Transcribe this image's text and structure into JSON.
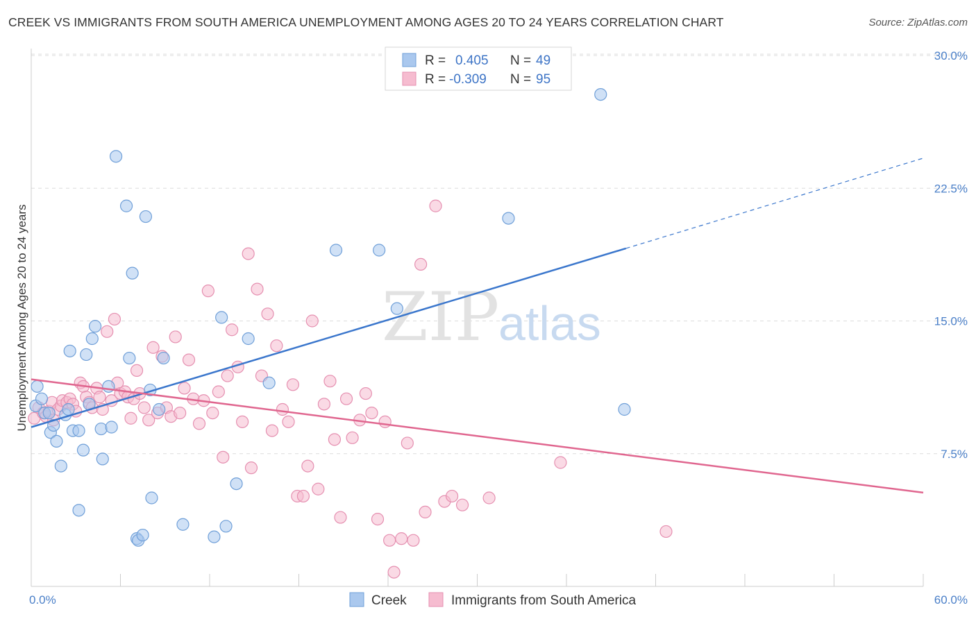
{
  "title": "CREEK VS IMMIGRANTS FROM SOUTH AMERICA UNEMPLOYMENT AMONG AGES 20 TO 24 YEARS CORRELATION CHART",
  "source": "Source: ZipAtlas.com",
  "watermark": {
    "part1": "ZIP",
    "part2": "atlas"
  },
  "colors": {
    "creek_fill": "#aac8ee",
    "creek_stroke": "#6f9fd8",
    "creek_line": "#3a76cc",
    "sa_fill": "#f6bcd0",
    "sa_stroke": "#e58fb0",
    "sa_line": "#e0668f",
    "tick_text": "#4a7fc8",
    "grid": "#dcdcdc"
  },
  "stats": {
    "creek": {
      "r_label": "R =",
      "r_value": "0.405",
      "n_label": "N =",
      "n_value": "49"
    },
    "sa": {
      "r_label": "R =",
      "r_value": "-0.309",
      "n_label": "N =",
      "n_value": "95"
    }
  },
  "chart_data": {
    "type": "scatter",
    "title": "CREEK VS IMMIGRANTS FROM SOUTH AMERICA UNEMPLOYMENT AMONG AGES 20 TO 24 YEARS CORRELATION CHART",
    "xlabel": "",
    "ylabel": "Unemployment Among Ages 20 to 24 years",
    "xlim": [
      0,
      60
    ],
    "ylim": [
      0,
      30
    ],
    "x_tick_labels": [
      "0.0%",
      "60.0%"
    ],
    "y_ticks": [
      7.5,
      15.0,
      22.5,
      30.0
    ],
    "y_tick_labels": [
      "7.5%",
      "15.0%",
      "22.5%",
      "30.0%"
    ],
    "grid": "horizontal dashed",
    "legend": "top-center and bottom-center",
    "series": [
      {
        "name": "Creek",
        "points": [
          [
            0.3,
            10.2
          ],
          [
            0.4,
            11.3
          ],
          [
            0.7,
            10.6
          ],
          [
            0.9,
            9.8
          ],
          [
            1.2,
            9.8
          ],
          [
            1.3,
            8.7
          ],
          [
            1.5,
            9.1
          ],
          [
            1.7,
            8.2
          ],
          [
            2.0,
            6.8
          ],
          [
            2.3,
            9.7
          ],
          [
            2.5,
            10.0
          ],
          [
            2.6,
            13.3
          ],
          [
            2.8,
            8.8
          ],
          [
            3.2,
            8.8
          ],
          [
            3.2,
            4.3
          ],
          [
            3.5,
            7.7
          ],
          [
            3.7,
            13.1
          ],
          [
            3.9,
            10.3
          ],
          [
            4.1,
            14.0
          ],
          [
            4.3,
            14.7
          ],
          [
            4.7,
            8.9
          ],
          [
            4.8,
            7.2
          ],
          [
            5.2,
            11.3
          ],
          [
            5.4,
            9.0
          ],
          [
            5.7,
            24.3
          ],
          [
            6.4,
            21.5
          ],
          [
            6.6,
            12.9
          ],
          [
            6.8,
            17.7
          ],
          [
            7.1,
            2.7
          ],
          [
            7.2,
            2.6
          ],
          [
            7.5,
            2.9
          ],
          [
            7.7,
            20.9
          ],
          [
            8.0,
            11.1
          ],
          [
            8.1,
            5.0
          ],
          [
            8.6,
            10.0
          ],
          [
            8.9,
            12.9
          ],
          [
            10.2,
            3.5
          ],
          [
            12.3,
            2.8
          ],
          [
            12.8,
            15.2
          ],
          [
            13.1,
            3.4
          ],
          [
            13.8,
            5.8
          ],
          [
            14.6,
            14.0
          ],
          [
            16.0,
            11.5
          ],
          [
            20.5,
            19.0
          ],
          [
            23.4,
            19.0
          ],
          [
            24.6,
            15.7
          ],
          [
            32.1,
            20.8
          ],
          [
            38.3,
            27.8
          ],
          [
            39.9,
            10.0
          ]
        ]
      },
      {
        "name": "Immigrants from South America",
        "points": [
          [
            0.2,
            9.5
          ],
          [
            0.5,
            10.1
          ],
          [
            0.8,
            9.8
          ],
          [
            1.0,
            9.6
          ],
          [
            1.2,
            9.9
          ],
          [
            1.4,
            10.4
          ],
          [
            1.5,
            9.4
          ],
          [
            1.8,
            10.0
          ],
          [
            2.0,
            10.2
          ],
          [
            2.1,
            10.5
          ],
          [
            2.4,
            10.4
          ],
          [
            2.6,
            10.6
          ],
          [
            2.8,
            10.3
          ],
          [
            3.0,
            9.9
          ],
          [
            3.3,
            11.5
          ],
          [
            3.5,
            11.3
          ],
          [
            3.7,
            10.7
          ],
          [
            3.9,
            10.4
          ],
          [
            4.1,
            10.1
          ],
          [
            4.4,
            11.2
          ],
          [
            4.6,
            10.7
          ],
          [
            4.8,
            10.0
          ],
          [
            5.1,
            14.4
          ],
          [
            5.4,
            10.5
          ],
          [
            5.6,
            15.1
          ],
          [
            5.8,
            11.5
          ],
          [
            6.0,
            10.9
          ],
          [
            6.3,
            11.0
          ],
          [
            6.5,
            10.7
          ],
          [
            6.7,
            9.5
          ],
          [
            6.9,
            10.6
          ],
          [
            7.1,
            12.2
          ],
          [
            7.3,
            10.9
          ],
          [
            7.6,
            10.1
          ],
          [
            7.9,
            9.4
          ],
          [
            8.2,
            13.5
          ],
          [
            8.5,
            9.8
          ],
          [
            8.8,
            13.0
          ],
          [
            9.1,
            10.1
          ],
          [
            9.4,
            9.6
          ],
          [
            9.7,
            14.1
          ],
          [
            10.0,
            9.8
          ],
          [
            10.3,
            11.2
          ],
          [
            10.6,
            12.8
          ],
          [
            10.9,
            10.6
          ],
          [
            11.3,
            9.2
          ],
          [
            11.6,
            10.5
          ],
          [
            11.9,
            16.7
          ],
          [
            12.2,
            9.8
          ],
          [
            12.6,
            11.0
          ],
          [
            12.9,
            7.3
          ],
          [
            13.2,
            11.9
          ],
          [
            13.5,
            14.5
          ],
          [
            13.9,
            12.4
          ],
          [
            14.2,
            9.3
          ],
          [
            14.6,
            18.8
          ],
          [
            14.8,
            6.7
          ],
          [
            15.2,
            16.8
          ],
          [
            15.5,
            11.9
          ],
          [
            15.9,
            15.4
          ],
          [
            16.2,
            8.8
          ],
          [
            16.5,
            13.6
          ],
          [
            16.9,
            10.0
          ],
          [
            17.3,
            9.3
          ],
          [
            17.6,
            11.4
          ],
          [
            17.9,
            5.1
          ],
          [
            18.3,
            5.1
          ],
          [
            18.6,
            6.8
          ],
          [
            18.9,
            15.0
          ],
          [
            19.3,
            5.5
          ],
          [
            19.7,
            10.3
          ],
          [
            20.1,
            11.6
          ],
          [
            20.4,
            8.3
          ],
          [
            20.8,
            3.9
          ],
          [
            21.2,
            10.6
          ],
          [
            21.6,
            8.4
          ],
          [
            22.1,
            9.4
          ],
          [
            22.5,
            10.9
          ],
          [
            22.9,
            9.8
          ],
          [
            23.3,
            3.8
          ],
          [
            23.8,
            9.3
          ],
          [
            24.1,
            2.6
          ],
          [
            24.4,
            0.8
          ],
          [
            24.9,
            2.7
          ],
          [
            25.3,
            8.1
          ],
          [
            25.7,
            2.6
          ],
          [
            26.2,
            18.2
          ],
          [
            26.5,
            4.2
          ],
          [
            27.2,
            21.5
          ],
          [
            27.8,
            4.8
          ],
          [
            28.3,
            5.1
          ],
          [
            29.0,
            4.6
          ],
          [
            30.8,
            5.0
          ],
          [
            35.6,
            7.0
          ],
          [
            42.7,
            3.1
          ]
        ]
      }
    ],
    "trend_lines": [
      {
        "series": "Creek",
        "solid_from": [
          0,
          9.0
        ],
        "solid_to": [
          40,
          19.1
        ],
        "dashed_to": [
          60,
          24.2
        ]
      },
      {
        "series": "Immigrants from South America",
        "from": [
          0,
          11.7
        ],
        "to": [
          60,
          5.3
        ]
      }
    ]
  }
}
